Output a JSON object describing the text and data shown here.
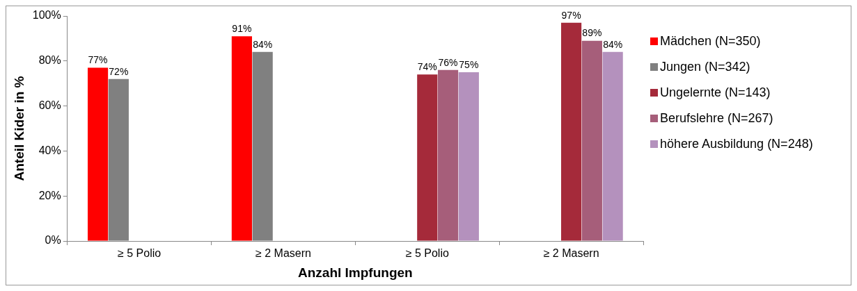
{
  "chart_data": {
    "type": "bar",
    "xlabel": "Anzahl Impfungen",
    "ylabel": "Anteil Kider in %",
    "categories": [
      "≥ 5 Polio",
      "≥ 2 Masern",
      "≥ 5 Polio",
      "≥ 2 Masern"
    ],
    "ylim": [
      0,
      100
    ],
    "yticks": [
      {
        "value": 0,
        "label": "0%"
      },
      {
        "value": 20,
        "label": "20%"
      },
      {
        "value": 40,
        "label": "40%"
      },
      {
        "value": 60,
        "label": "60%"
      },
      {
        "value": 80,
        "label": "80%"
      },
      {
        "value": 100,
        "label": "100%"
      }
    ],
    "grid": false,
    "legend": "right",
    "series": [
      {
        "name": "Mädchen (N=350)",
        "color": "#ff0000",
        "values": [
          77,
          91,
          null,
          null
        ],
        "value_labels": [
          "77%",
          "91%",
          null,
          null
        ]
      },
      {
        "name": "Jungen (N=342)",
        "color": "#808080",
        "values": [
          72,
          84,
          null,
          null
        ],
        "value_labels": [
          "72%",
          "84%",
          null,
          null
        ]
      },
      {
        "name": "Ungelernte (N=143)",
        "color": "#a52a3a",
        "values": [
          null,
          null,
          74,
          97
        ],
        "value_labels": [
          null,
          null,
          "74%",
          "97%"
        ]
      },
      {
        "name": "Berufslehre (N=267)",
        "color": "#a65e7a",
        "values": [
          null,
          null,
          76,
          89
        ],
        "value_labels": [
          null,
          null,
          "76%",
          "89%"
        ]
      },
      {
        "name": "höhere Ausbildung (N=248)",
        "color": "#b491bd",
        "values": [
          null,
          null,
          75,
          84
        ],
        "value_labels": [
          null,
          null,
          "75%",
          "84%"
        ]
      }
    ]
  }
}
